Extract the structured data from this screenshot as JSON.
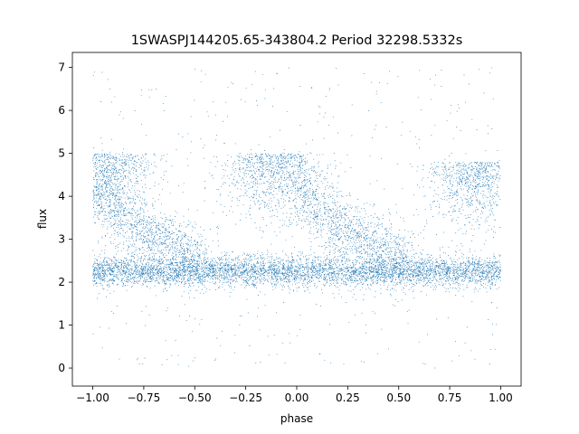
{
  "chart_data": {
    "type": "scatter",
    "title": "1SWASPJ144205.65-343804.2 Period 32298.5332s",
    "xlabel": "phase",
    "ylabel": "flux",
    "xlim": [
      -1.1,
      1.1
    ],
    "ylim": [
      -0.42,
      7.35
    ],
    "x_ticks": [
      -1.0,
      -0.75,
      -0.5,
      -0.25,
      0.0,
      0.25,
      0.5,
      0.75,
      1.0
    ],
    "x_tick_labels": [
      "−1.00",
      "−0.75",
      "−0.50",
      "−0.25",
      "0.00",
      "0.25",
      "0.50",
      "0.75",
      "1.00"
    ],
    "y_ticks": [
      0,
      1,
      2,
      3,
      4,
      5,
      6,
      7
    ],
    "y_tick_labels": [
      "0",
      "1",
      "2",
      "3",
      "4",
      "5",
      "6",
      "7"
    ],
    "grid": false,
    "legend": "none",
    "marker_color": "#1f77b4",
    "phase_range": [
      -1.0,
      1.0
    ],
    "baseline_flux": 2.25,
    "baseline_scatter": 0.18,
    "upper_branch_peaks": [
      {
        "phase": -0.95,
        "flux": 5.0
      },
      {
        "phase": -0.12,
        "flux": 5.0
      },
      {
        "phase": 0.88,
        "flux": 4.8
      }
    ],
    "descending_branch": [
      {
        "phase_start": -1.0,
        "flux_start": 4.6,
        "phase_end": -0.45,
        "flux_end": 2.5
      },
      {
        "phase_start": 0.0,
        "flux_start": 4.6,
        "phase_end": 0.55,
        "flux_end": 2.5
      }
    ],
    "outlier_range": [
      0.0,
      7.0
    ]
  }
}
